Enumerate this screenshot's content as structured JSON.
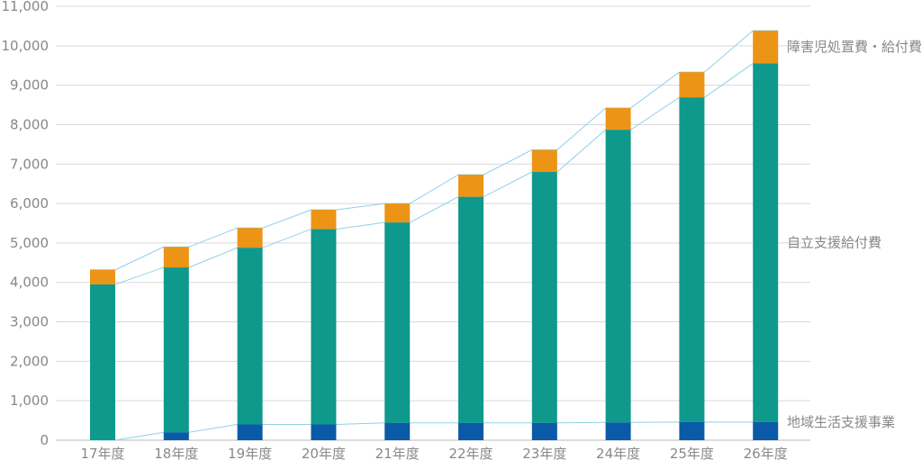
{
  "chart_data": {
    "type": "bar",
    "stacked": true,
    "categories": [
      "17年度",
      "18年度",
      "19年度",
      "20年度",
      "21年度",
      "22年度",
      "23年度",
      "24年度",
      "25年度",
      "26年度"
    ],
    "series": [
      {
        "name": "地域生活支援事業",
        "color": "#0a5aa8",
        "values": [
          0,
          200,
          400,
          400,
          440,
          440,
          440,
          450,
          460,
          460
        ]
      },
      {
        "name": "自立支援給付費",
        "color": "#0e998c",
        "values": [
          3950,
          4180,
          4480,
          4950,
          5080,
          5730,
          6360,
          7420,
          8230,
          9090
        ]
      },
      {
        "name": "障害児処置費・給付費",
        "color": "#ec9416",
        "values": [
          370,
          520,
          500,
          490,
          480,
          560,
          560,
          550,
          640,
          830
        ]
      }
    ],
    "ylim": [
      0,
      11000
    ],
    "yticks": [
      "0",
      "1,000",
      "2,000",
      "3,000",
      "4,000",
      "5,000",
      "6,000",
      "7,000",
      "8,000",
      "9,000",
      "10,000",
      "11,000"
    ],
    "grid": true,
    "connector_color": "#8fd0ea",
    "legend": "right"
  }
}
